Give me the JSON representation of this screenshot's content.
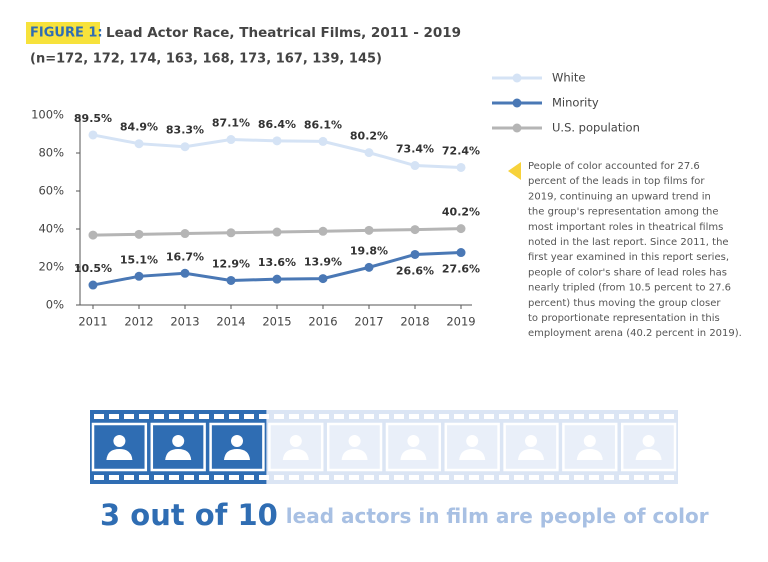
{
  "figure_label": "FIGURE 1:",
  "chart_data": {
    "type": "line",
    "title": "Lead Actor Race, Theatrical Films, 2011 - 2019",
    "subtitle": "(n=172, 172, 174, 163, 168, 173, 167, 139, 145)",
    "categories": [
      "2011",
      "2012",
      "2013",
      "2014",
      "2015",
      "2016",
      "2017",
      "2018",
      "2019"
    ],
    "series": [
      {
        "name": "White",
        "color": "#d5e3f5",
        "values": [
          89.5,
          84.9,
          83.3,
          87.1,
          86.4,
          86.1,
          80.2,
          73.4,
          72.4
        ],
        "value_labels": [
          "89.5%",
          "84.9%",
          "83.3%",
          "87.1%",
          "86.4%",
          "86.1%",
          "80.2%",
          "73.4%",
          "72.4%"
        ]
      },
      {
        "name": "Minority",
        "color": "#4a78b5",
        "values": [
          10.5,
          15.1,
          16.7,
          12.9,
          13.6,
          13.9,
          19.8,
          26.6,
          27.6
        ],
        "value_labels": [
          "10.5%",
          "15.1%",
          "16.7%",
          "12.9%",
          "13.6%",
          "13.9%",
          "19.8%",
          "26.6%",
          "27.6%"
        ]
      },
      {
        "name": "U.S. population",
        "color": "#b5b5b5",
        "values": [
          36.8,
          37.2,
          37.6,
          38.0,
          38.4,
          38.8,
          39.3,
          39.7,
          40.2
        ],
        "value_labels": [
          null,
          null,
          null,
          null,
          null,
          null,
          null,
          null,
          "40.2%"
        ]
      }
    ],
    "ylim": [
      0,
      100
    ],
    "yticks": [
      {
        "value": 0,
        "label": "0%"
      },
      {
        "value": 20,
        "label": "20%"
      },
      {
        "value": 40,
        "label": "40%"
      },
      {
        "value": 60,
        "label": "60%"
      },
      {
        "value": 80,
        "label": "80%"
      },
      {
        "value": 100,
        "label": "100%"
      }
    ],
    "legend": "top-right",
    "annotation": [
      "People of color accounted for 27.6",
      "percent of the leads in top films for",
      "2019, continuing an upward trend in",
      "the group's representation among the",
      "most important roles in theatrical films",
      "noted in the last report.  Since 2011, the",
      "first year examined in this report series,",
      "people of color's share of lead roles has",
      "nearly tripled (from 10.5 percent to 27.6",
      "percent) thus moving the group closer",
      "to proportionate representation in this",
      "employment arena (40.2 percent in 2019)."
    ]
  },
  "pictogram": {
    "highlighted": 3,
    "total": 10,
    "highlight_color": "#2f6db3",
    "base_color": "#dbe5f4",
    "headline": "3 out of 10",
    "caption": "lead actors in film are people of color"
  }
}
